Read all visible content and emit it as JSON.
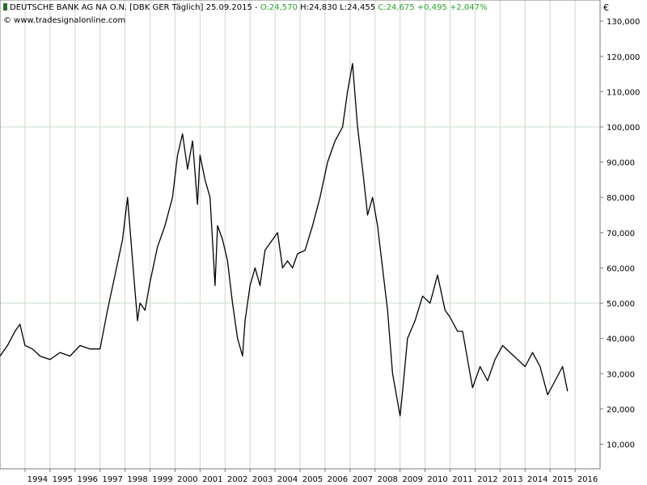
{
  "header": {
    "name": "DEUTSCHE BANK AG NA O.N. [DBK GER  Täglich]",
    "date": "25.09.2015",
    "open": "O:24,570",
    "high": "H:24,830",
    "low": "L:24,455",
    "change": "C:24,675 +0,495 +2,047%"
  },
  "source": "© www.tradesignalonline.com",
  "currency": "€",
  "colors": {
    "line": "#000000",
    "grid": "#c8dcc8",
    "change": "#2aa12a"
  },
  "chart_data": {
    "type": "line",
    "title": "DEUTSCHE BANK AG NA O.N.",
    "xlabel": "",
    "ylabel": "",
    "x_ticks": [
      "1994",
      "1995",
      "1996",
      "1997",
      "1998",
      "1999",
      "2000",
      "2001",
      "2002",
      "2003",
      "2004",
      "2005",
      "2006",
      "2007",
      "2008",
      "2009",
      "2010",
      "2011",
      "2012",
      "2013",
      "2014",
      "2015",
      "2016"
    ],
    "y_ticks": [
      "10,000",
      "20,000",
      "30,000",
      "40,000",
      "50,000",
      "60,000",
      "70,000",
      "80,000",
      "90,000",
      "100,000",
      "110,000",
      "120,000",
      "130,000"
    ],
    "xlim": [
      1993.0,
      2017.0
    ],
    "ylim": [
      3,
      136
    ],
    "grid": true,
    "series": [
      {
        "name": "",
        "x": [
          1993.0,
          1993.3,
          1993.6,
          1993.8,
          1994.0,
          1994.3,
          1994.6,
          1995.0,
          1995.4,
          1995.8,
          1996.2,
          1996.6,
          1997.0,
          1997.3,
          1997.6,
          1997.9,
          1998.1,
          1998.3,
          1998.5,
          1998.6,
          1998.8,
          1999.0,
          1999.3,
          1999.6,
          1999.9,
          2000.1,
          2000.3,
          2000.5,
          2000.7,
          2000.9,
          2001.0,
          2001.2,
          2001.4,
          2001.6,
          2001.7,
          2001.9,
          2002.1,
          2002.3,
          2002.5,
          2002.7,
          2002.8,
          2003.0,
          2003.2,
          2003.4,
          2003.6,
          2003.9,
          2004.1,
          2004.3,
          2004.5,
          2004.7,
          2004.9,
          2005.2,
          2005.5,
          2005.8,
          2006.1,
          2006.4,
          2006.7,
          2006.9,
          2007.1,
          2007.3,
          2007.5,
          2007.7,
          2007.9,
          2008.1,
          2008.3,
          2008.5,
          2008.7,
          2008.9,
          2009.0,
          2009.1,
          2009.3,
          2009.6,
          2009.9,
          2010.2,
          2010.5,
          2010.8,
          2011.0,
          2011.3,
          2011.5,
          2011.7,
          2011.9,
          2012.2,
          2012.5,
          2012.8,
          2013.1,
          2013.4,
          2013.7,
          2014.0,
          2014.3,
          2014.6,
          2014.9,
          2015.2,
          2015.5,
          2015.7
        ],
        "values": [
          35,
          38,
          42,
          44,
          38,
          37,
          35,
          34,
          36,
          35,
          38,
          37,
          37,
          48,
          58,
          68,
          80,
          62,
          45,
          50,
          48,
          56,
          66,
          72,
          80,
          92,
          98,
          88,
          96,
          78,
          92,
          85,
          80,
          55,
          72,
          68,
          62,
          50,
          40,
          35,
          45,
          55,
          60,
          55,
          65,
          68,
          70,
          60,
          62,
          60,
          64,
          65,
          72,
          80,
          90,
          96,
          100,
          110,
          118,
          100,
          88,
          75,
          80,
          72,
          60,
          48,
          30,
          22,
          18,
          25,
          40,
          45,
          52,
          50,
          58,
          48,
          46,
          42,
          42,
          34,
          26,
          32,
          28,
          34,
          38,
          36,
          34,
          32,
          36,
          32,
          24,
          28,
          32,
          25
        ]
      }
    ]
  }
}
